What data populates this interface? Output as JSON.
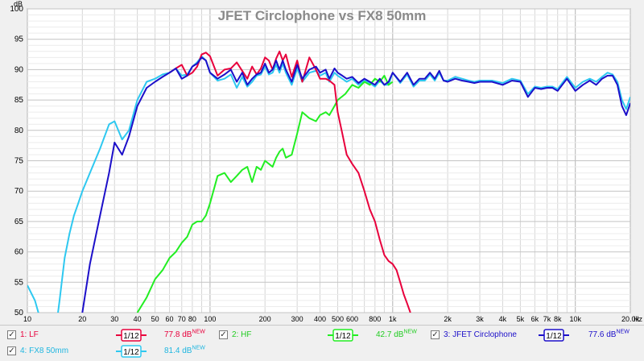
{
  "chart_data": {
    "type": "line",
    "title": "JFET Circlophone vs FX8 50mm",
    "xlabel": "Hz",
    "ylabel": "dB",
    "xscale": "log",
    "xlim": [
      10,
      20000
    ],
    "ylim": [
      50,
      100
    ],
    "grid": true,
    "x_ticks": [
      {
        "v": 10,
        "t": "10"
      },
      {
        "v": 20,
        "t": "20"
      },
      {
        "v": 30,
        "t": "30"
      },
      {
        "v": 40,
        "t": "40"
      },
      {
        "v": 50,
        "t": "50"
      },
      {
        "v": 60,
        "t": "60"
      },
      {
        "v": 70,
        "t": "70"
      },
      {
        "v": 80,
        "t": "80"
      },
      {
        "v": 100,
        "t": "100"
      },
      {
        "v": 200,
        "t": "200"
      },
      {
        "v": 300,
        "t": "300"
      },
      {
        "v": 400,
        "t": "400"
      },
      {
        "v": 500,
        "t": "500"
      },
      {
        "v": 600,
        "t": "600"
      },
      {
        "v": 800,
        "t": "800"
      },
      {
        "v": 1000,
        "t": "1k"
      },
      {
        "v": 2000,
        "t": "2k"
      },
      {
        "v": 3000,
        "t": "3k"
      },
      {
        "v": 4000,
        "t": "4k"
      },
      {
        "v": 5000,
        "t": "5k"
      },
      {
        "v": 6000,
        "t": "6k"
      },
      {
        "v": 7000,
        "t": "7k"
      },
      {
        "v": 8000,
        "t": "8k"
      },
      {
        "v": 10000,
        "t": "10k"
      },
      {
        "v": 20000,
        "t": "20.0k"
      }
    ],
    "y_ticks": [
      "50",
      "55",
      "60",
      "65",
      "70",
      "75",
      "80",
      "85",
      "90",
      "95",
      "100"
    ],
    "series": [
      {
        "name": "1: LF",
        "color": "#e8003c",
        "level": "77.8 dB",
        "x": [
          60,
          65,
          70,
          75,
          80,
          85,
          90,
          95,
          100,
          110,
          120,
          130,
          140,
          150,
          160,
          170,
          180,
          190,
          200,
          210,
          220,
          230,
          240,
          250,
          260,
          280,
          300,
          320,
          350,
          380,
          400,
          430,
          450,
          480,
          500,
          530,
          560,
          600,
          650,
          700,
          750,
          800,
          850,
          900,
          950,
          1000,
          1050,
          1100,
          1150,
          1200,
          1250
        ],
        "y": [
          89.5,
          90.2,
          90.8,
          89,
          89.5,
          90.5,
          92.5,
          92.8,
          92.2,
          89,
          90,
          90.2,
          91.2,
          89.8,
          88.5,
          90.5,
          89.2,
          90.2,
          92,
          91.5,
          90,
          91.8,
          93,
          91.5,
          92.5,
          88.8,
          91.5,
          88,
          92,
          90,
          88.5,
          88.5,
          88.2,
          87.5,
          83,
          79.5,
          76,
          74.5,
          73,
          70,
          67,
          65,
          62,
          59.5,
          58.5,
          58,
          57,
          55,
          53,
          51.5,
          50
        ]
      },
      {
        "name": "2: HF",
        "color": "#22ee22",
        "level": "42.7 dB",
        "x": [
          40,
          45,
          50,
          55,
          60,
          65,
          70,
          75,
          80,
          85,
          90,
          95,
          100,
          110,
          120,
          130,
          140,
          150,
          160,
          170,
          180,
          190,
          200,
          210,
          220,
          230,
          240,
          250,
          260,
          280,
          300,
          320,
          350,
          380,
          400,
          430,
          450,
          480,
          500,
          550,
          600,
          650,
          700,
          750,
          800,
          850,
          900,
          950,
          1000
        ],
        "y": [
          50,
          52.5,
          55.5,
          57,
          59,
          60,
          61.5,
          62.5,
          64.5,
          65,
          65,
          66,
          68,
          72.5,
          73,
          71.5,
          72.5,
          73.5,
          74,
          71.5,
          74,
          73.5,
          75,
          74.5,
          74,
          75.5,
          76.5,
          77,
          75.5,
          76,
          79.5,
          83,
          82,
          81.5,
          82.5,
          83,
          82.5,
          84,
          85,
          86,
          87.5,
          87,
          88,
          87.5,
          88.5,
          88,
          89,
          87.5,
          88
        ]
      },
      {
        "name": "3: JFET Circlophone",
        "color": "#1c0fc9",
        "level": "77.6 dB",
        "x": [
          20,
          22,
          25,
          28,
          30,
          33,
          36,
          40,
          45,
          50,
          55,
          60,
          65,
          70,
          75,
          80,
          85,
          90,
          95,
          100,
          110,
          120,
          130,
          140,
          150,
          160,
          170,
          180,
          190,
          200,
          210,
          220,
          230,
          240,
          250,
          260,
          280,
          300,
          320,
          350,
          380,
          400,
          430,
          450,
          480,
          500,
          530,
          560,
          600,
          650,
          700,
          750,
          800,
          850,
          900,
          950,
          1000,
          1100,
          1200,
          1300,
          1400,
          1500,
          1600,
          1700,
          1800,
          1900,
          2000,
          2200,
          2400,
          2600,
          2800,
          3000,
          3500,
          4000,
          4500,
          5000,
          5500,
          6000,
          6500,
          7000,
          7500,
          8000,
          9000,
          10000,
          11000,
          12000,
          13000,
          14000,
          15000,
          16000,
          17000,
          18000,
          19000,
          20000
        ],
        "y": [
          50,
          58,
          66,
          73,
          78,
          76,
          79,
          84,
          87,
          88,
          88.8,
          89.5,
          90.2,
          88.5,
          89,
          90.5,
          91,
          92,
          91.5,
          89.5,
          88.5,
          89.2,
          90,
          88,
          89.5,
          87.5,
          88.5,
          89.2,
          89.5,
          91,
          89.5,
          90,
          91.5,
          90,
          91.5,
          90,
          88,
          90.8,
          88.5,
          90,
          90.5,
          89.5,
          90,
          88.5,
          90.2,
          89.5,
          89,
          88.5,
          88.8,
          87.8,
          88.5,
          88,
          87.5,
          88.5,
          87.5,
          88,
          89.5,
          88,
          89.5,
          87.5,
          88.5,
          88.5,
          89.5,
          88.5,
          89.8,
          88.2,
          88,
          88.5,
          88.2,
          88,
          87.8,
          88,
          88,
          87.5,
          88.2,
          88,
          85.5,
          87,
          86.8,
          87,
          87,
          86.5,
          88.5,
          86.5,
          87.5,
          88.2,
          87.5,
          88.5,
          89,
          89,
          87.5,
          84,
          82.5,
          84.5
        ]
      },
      {
        "name": "4: FX8 50mm",
        "color": "#2ec8f0",
        "level": "81.4 dB",
        "x": [
          10,
          11,
          12,
          13,
          14,
          15,
          16,
          17,
          18,
          19,
          20,
          22,
          25,
          28,
          30,
          33,
          36,
          40,
          45,
          50,
          55,
          60,
          65,
          70,
          75,
          80,
          85,
          90,
          95,
          100,
          110,
          120,
          130,
          140,
          150,
          160,
          170,
          180,
          190,
          200,
          210,
          220,
          230,
          240,
          250,
          260,
          280,
          300,
          320,
          350,
          380,
          400,
          430,
          450,
          480,
          500,
          530,
          560,
          600,
          650,
          700,
          750,
          800,
          850,
          900,
          950,
          1000,
          1100,
          1200,
          1300,
          1400,
          1500,
          1600,
          1700,
          1800,
          1900,
          2000,
          2200,
          2400,
          2600,
          2800,
          3000,
          3500,
          4000,
          4500,
          5000,
          5500,
          6000,
          6500,
          7000,
          7500,
          8000,
          9000,
          10000,
          11000,
          12000,
          13000,
          14000,
          15000,
          16000,
          17000,
          18000,
          19000,
          20000
        ],
        "y": [
          54.5,
          52,
          48,
          40,
          45,
          52,
          59,
          63,
          66,
          68,
          70,
          73,
          77,
          81,
          81.5,
          78.5,
          80,
          85,
          88,
          88.5,
          89.2,
          89.5,
          90.2,
          89,
          89.2,
          90.5,
          91.2,
          92.2,
          91.5,
          89.5,
          88.2,
          88.5,
          89.2,
          87,
          88.8,
          87.2,
          88,
          89,
          89.2,
          90.5,
          89.2,
          89.5,
          90.8,
          89.5,
          91,
          89.5,
          87.5,
          90.2,
          88,
          89.5,
          89.8,
          89,
          89.5,
          88,
          89.5,
          89,
          88.5,
          88,
          88.5,
          87.5,
          88.2,
          87.8,
          87.2,
          88.2,
          87.5,
          87.5,
          89.5,
          87.8,
          89.2,
          87.2,
          88.2,
          88.2,
          89.2,
          88.2,
          89.5,
          88.2,
          88.2,
          88.8,
          88.5,
          88.2,
          88,
          88.2,
          88.2,
          87.8,
          88.5,
          88.2,
          86,
          87.2,
          87,
          87.2,
          87.2,
          86.8,
          88.8,
          87,
          88,
          88.5,
          88,
          88.8,
          89.5,
          89.2,
          88,
          85,
          83.5,
          85.5
        ]
      }
    ]
  },
  "legend": {
    "new_tag": "NEW",
    "smooth_label": "1/12",
    "items": [
      {
        "checkbox": "✓",
        "name": "1: LF",
        "level": "77.8 dB"
      },
      {
        "checkbox": "✓",
        "name": "2: HF",
        "level": "42.7 dB"
      },
      {
        "checkbox": "✓",
        "name": "3: JFET Circlophone",
        "level": "77.6 dB"
      },
      {
        "checkbox": "✓",
        "name": "4: FX8 50mm",
        "level": "81.4 dB"
      }
    ]
  }
}
